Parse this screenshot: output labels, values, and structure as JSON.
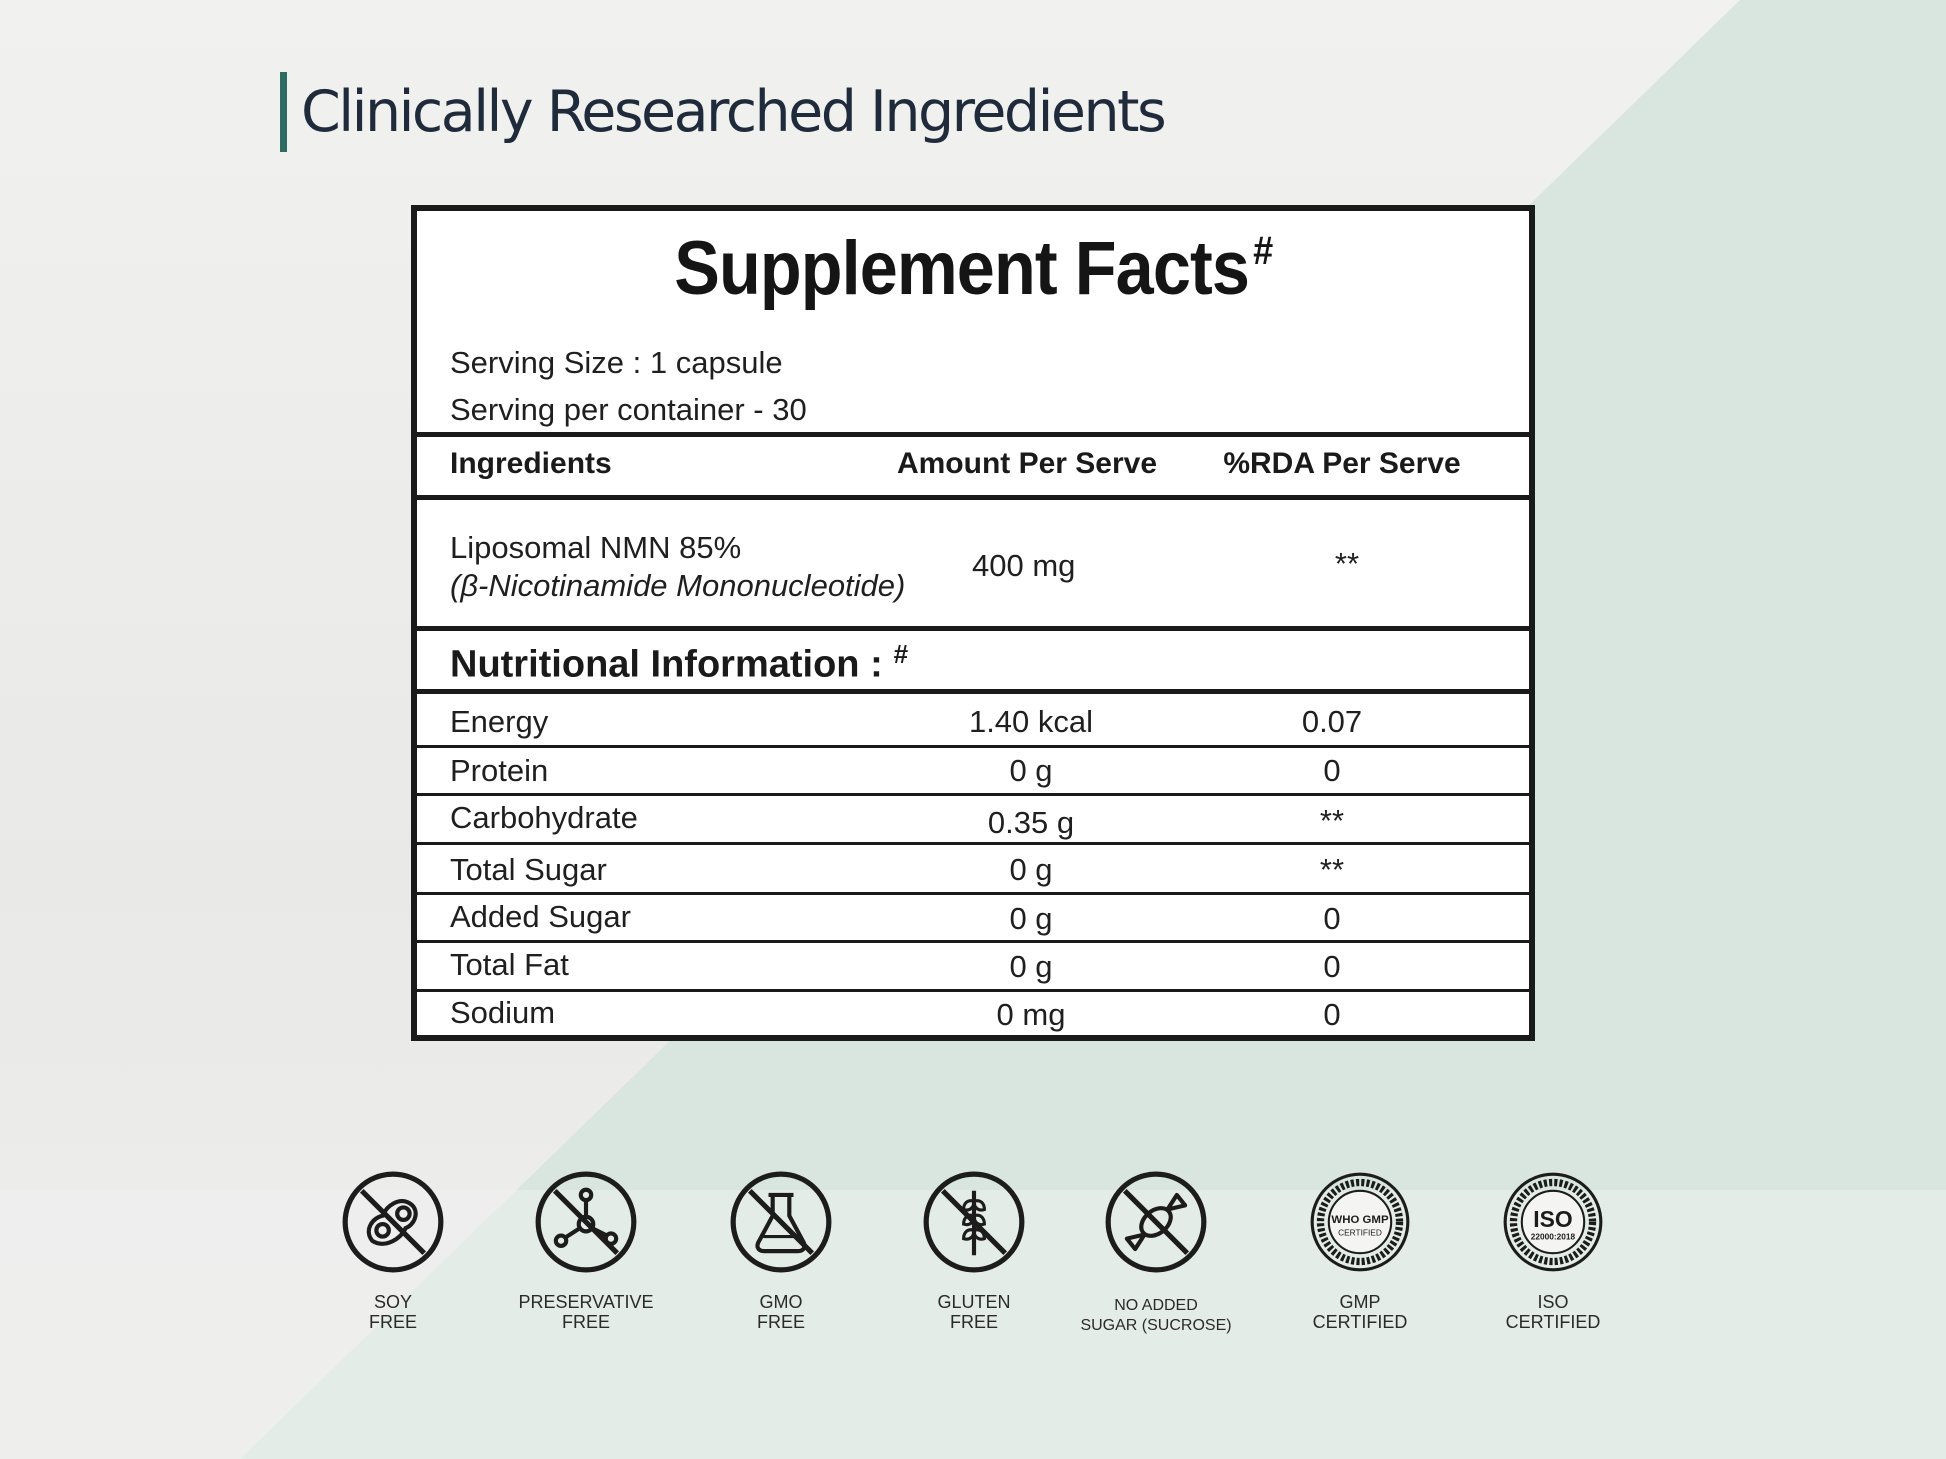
{
  "heading": "Clinically Researched Ingredients",
  "facts": {
    "title": "Supplement Facts",
    "title_mark": "#",
    "serving_size": "Serving Size : 1 capsule",
    "servings_per_container": "Serving per container - 30",
    "columns": [
      "Ingredients",
      "Amount Per Serve",
      "%RDA Per Serve"
    ],
    "ingredient": {
      "name": "Liposomal NMN 85%",
      "subname": "(β-Nicotinamide Mononucleotide)",
      "amount": "400 mg",
      "rda": "**"
    },
    "nutrition_title": "Nutritional Information :",
    "nutrition_mark": "#",
    "nutrition": [
      {
        "name": "Energy",
        "amount": "1.40 kcal",
        "rda": "0.07"
      },
      {
        "name": "Protein",
        "amount": "0 g",
        "rda": "0"
      },
      {
        "name": "Carbohydrate",
        "amount": "0.35 g",
        "rda": "**"
      },
      {
        "name": "Total Sugar",
        "amount": "0 g",
        "rda": "**"
      },
      {
        "name": "Added Sugar",
        "amount": "0 g",
        "rda": "0"
      },
      {
        "name": "Total Fat",
        "amount": "0 g",
        "rda": "0"
      },
      {
        "name": "Sodium",
        "amount": "0 mg",
        "rda": "0"
      }
    ]
  },
  "badges": [
    {
      "icon": "soy-icon",
      "line1": "SOY",
      "line2": "FREE"
    },
    {
      "icon": "preservative-icon",
      "line1": "PRESERVATIVE",
      "line2": "FREE"
    },
    {
      "icon": "gmo-flask-icon",
      "line1": "GMO",
      "line2": "FREE"
    },
    {
      "icon": "gluten-wheat-icon",
      "line1": "GLUTEN",
      "line2": "FREE"
    },
    {
      "icon": "candy-icon",
      "line1": "NO ADDED",
      "line2": "SUGAR (SUCROSE)"
    },
    {
      "icon": "gmp-seal-icon",
      "line1": "GMP",
      "line2": "CERTIFIED",
      "seal_text": "WHO GMP",
      "seal_sub": "CERTIFIED"
    },
    {
      "icon": "iso-seal-icon",
      "line1": "ISO",
      "line2": "CERTIFIED",
      "seal_text": "ISO",
      "seal_sub": "22000:2018"
    }
  ],
  "colors": {
    "accent": "#2d6b63",
    "heading": "#1f2a3a",
    "mint": "#d6e5de",
    "ink": "#1a1a1a"
  }
}
